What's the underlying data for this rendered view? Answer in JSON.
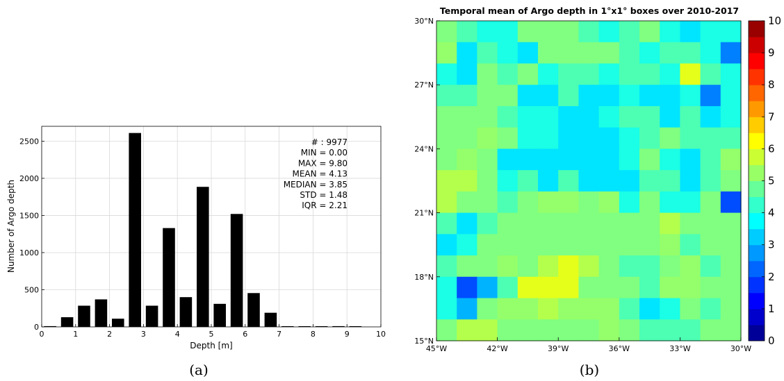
{
  "chart_data": [
    {
      "type": "bar",
      "panel_caption": "(a)",
      "xlabel": "Depth [m]",
      "ylabel": "Number of Argo depth",
      "xlim": [
        0,
        10
      ],
      "ylim": [
        0,
        2700
      ],
      "xticks": [
        "0",
        "1",
        "2",
        "3",
        "4",
        "5",
        "6",
        "7",
        "8",
        "9",
        "10"
      ],
      "yticks": [
        "0",
        "500",
        "1000",
        "1500",
        "2000",
        "2500"
      ],
      "grid": true,
      "x": [
        0.25,
        0.75,
        1.25,
        1.75,
        2.25,
        2.75,
        3.25,
        3.75,
        4.25,
        4.75,
        5.25,
        5.75,
        6.25,
        6.75,
        7.25,
        7.75,
        8.25,
        8.75,
        9.25,
        9.75
      ],
      "values": [
        10,
        130,
        285,
        370,
        110,
        2610,
        285,
        1330,
        400,
        1885,
        310,
        1520,
        455,
        190,
        5,
        5,
        5,
        10,
        5,
        0
      ],
      "stats": [
        "# : 9977",
        "MIN = 0.00",
        "MAX =  9.80",
        "MEAN = 4.13",
        "MEDIAN = 3.85",
        "STD = 1.48",
        "IQR = 2.21"
      ]
    },
    {
      "type": "heatmap",
      "panel_caption": "(b)",
      "title": "Temporal mean of Argo depth in 1°x1° boxes over 2010-2017",
      "xlim": [
        -45,
        -30
      ],
      "ylim": [
        15,
        30
      ],
      "xticks": [
        "45°W",
        "42°W",
        "39°W",
        "36°W",
        "33°W",
        "30°W"
      ],
      "yticks": [
        "15°N",
        "18°N",
        "21°N",
        "24°N",
        "27°N",
        "30°N"
      ],
      "colorbar": {
        "min": 0,
        "max": 10,
        "ticks": [
          "0",
          "1",
          "2",
          "3",
          "4",
          "5",
          "6",
          "7",
          "8",
          "9",
          "10"
        ],
        "colormap": "jet"
      },
      "rows_north_to_south": [
        [
          5.0,
          4.5,
          4.0,
          4.0,
          5.0,
          5.0,
          5.0,
          4.5,
          4.0,
          4.5,
          5.0,
          4.0,
          3.5,
          4.0,
          4.0
        ],
        [
          5.2,
          3.5,
          4.5,
          4.0,
          3.5,
          5.0,
          5.0,
          5.0,
          5.0,
          4.5,
          4.0,
          4.5,
          4.5,
          4.0,
          2.5
        ],
        [
          4.0,
          3.5,
          5.0,
          4.5,
          5.0,
          4.0,
          4.5,
          4.5,
          4.0,
          4.5,
          4.5,
          4.0,
          6.0,
          4.5,
          4.0
        ],
        [
          4.5,
          4.5,
          5.0,
          5.0,
          3.5,
          3.5,
          4.5,
          3.5,
          3.5,
          4.0,
          3.5,
          3.5,
          4.0,
          2.5,
          4.0
        ],
        [
          5.0,
          5.0,
          5.0,
          4.5,
          4.0,
          4.0,
          3.5,
          3.5,
          4.0,
          4.5,
          4.5,
          3.5,
          4.5,
          3.5,
          4.0
        ],
        [
          5.0,
          5.0,
          5.2,
          5.0,
          4.0,
          4.0,
          3.5,
          3.5,
          3.5,
          4.0,
          4.5,
          5.0,
          4.5,
          4.5,
          4.5
        ],
        [
          5.0,
          5.2,
          5.0,
          3.5,
          3.5,
          3.5,
          3.5,
          3.5,
          3.5,
          4.0,
          5.0,
          4.0,
          3.5,
          4.5,
          5.2
        ],
        [
          5.5,
          5.5,
          5.0,
          4.0,
          4.5,
          3.5,
          4.5,
          3.5,
          3.5,
          3.5,
          4.5,
          4.5,
          3.5,
          4.5,
          5.0
        ],
        [
          5.5,
          5.0,
          5.0,
          4.5,
          5.0,
          5.2,
          5.2,
          5.0,
          5.2,
          4.0,
          5.0,
          4.0,
          4.0,
          5.0,
          2.0
        ],
        [
          4.5,
          3.5,
          4.5,
          5.0,
          5.0,
          5.0,
          5.0,
          5.0,
          5.0,
          5.0,
          5.0,
          5.5,
          5.0,
          5.0,
          5.0
        ],
        [
          3.5,
          4.0,
          5.0,
          5.0,
          5.0,
          5.0,
          5.0,
          5.0,
          5.0,
          5.0,
          5.0,
          5.2,
          4.5,
          5.0,
          5.0
        ],
        [
          4.5,
          5.0,
          5.0,
          5.2,
          5.0,
          5.5,
          6.0,
          5.5,
          5.0,
          4.5,
          4.5,
          5.0,
          5.2,
          4.5,
          5.0
        ],
        [
          4.0,
          2.0,
          3.0,
          4.5,
          6.0,
          6.0,
          6.0,
          5.0,
          5.0,
          5.0,
          4.5,
          5.2,
          5.2,
          5.0,
          5.0
        ],
        [
          4.0,
          3.0,
          5.0,
          5.2,
          5.2,
          5.5,
          5.2,
          5.2,
          5.2,
          4.5,
          3.5,
          4.0,
          5.0,
          4.5,
          5.0
        ],
        [
          5.0,
          5.5,
          5.5,
          5.0,
          5.0,
          5.0,
          5.0,
          5.0,
          5.2,
          5.0,
          4.5,
          4.5,
          4.5,
          5.0,
          5.0
        ]
      ]
    }
  ]
}
